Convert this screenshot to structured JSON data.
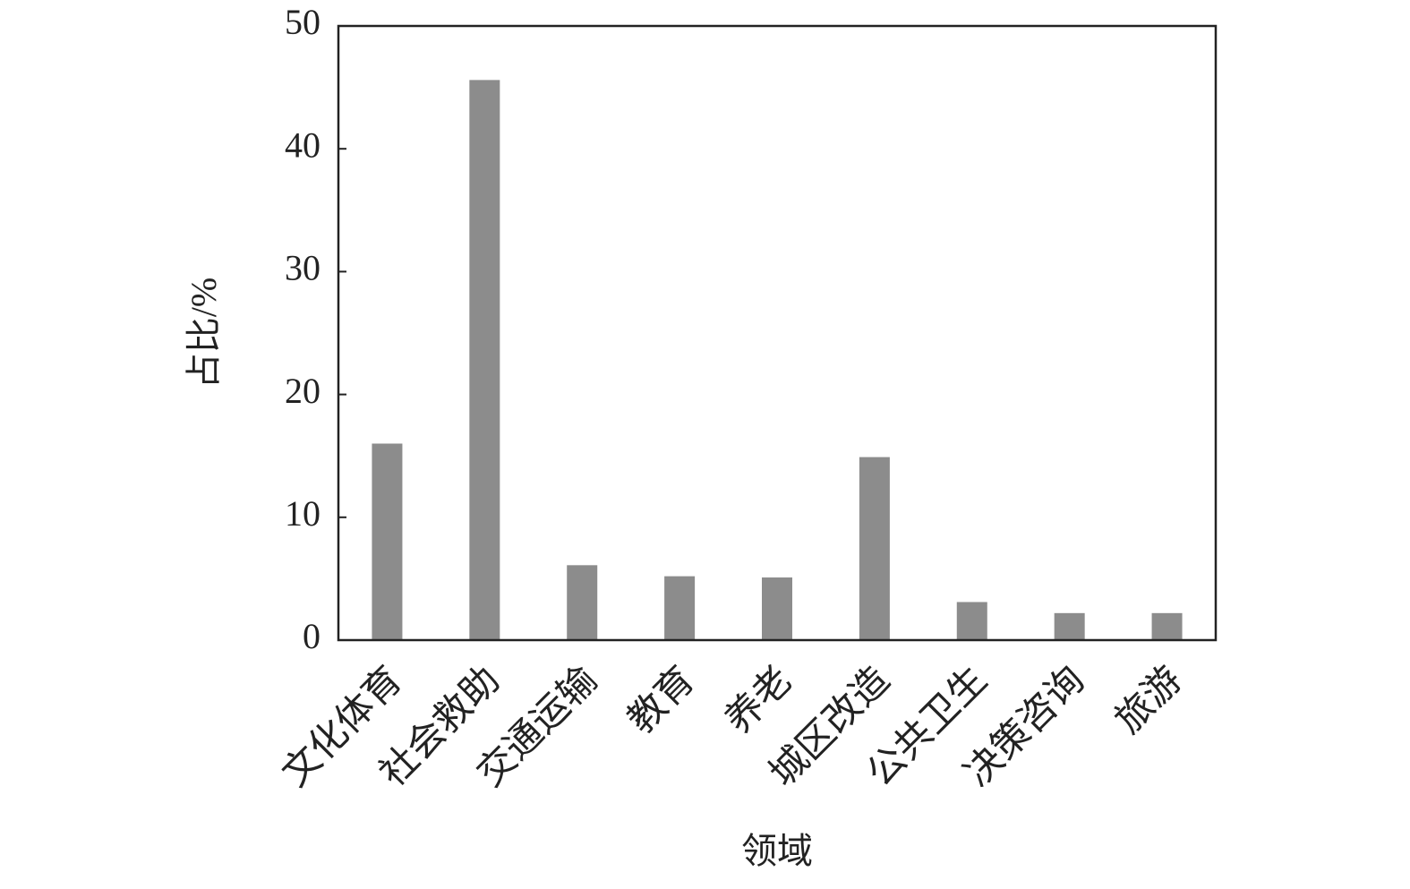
{
  "chart_data": {
    "type": "bar",
    "x_label": "领域",
    "y_label": "占比/%",
    "categories": [
      "文化体育",
      "社会救助",
      "交通运输",
      "教育",
      "养老",
      "城区改造",
      "公共卫生",
      "决策咨询",
      "旅游"
    ],
    "values": [
      16.0,
      45.6,
      6.1,
      5.2,
      5.1,
      14.9,
      3.1,
      2.2,
      2.2
    ],
    "color": "#8c8c8c",
    "ylim": [
      0,
      50
    ],
    "yticks": [
      0,
      10,
      20,
      30,
      40,
      50
    ],
    "grid": false
  }
}
